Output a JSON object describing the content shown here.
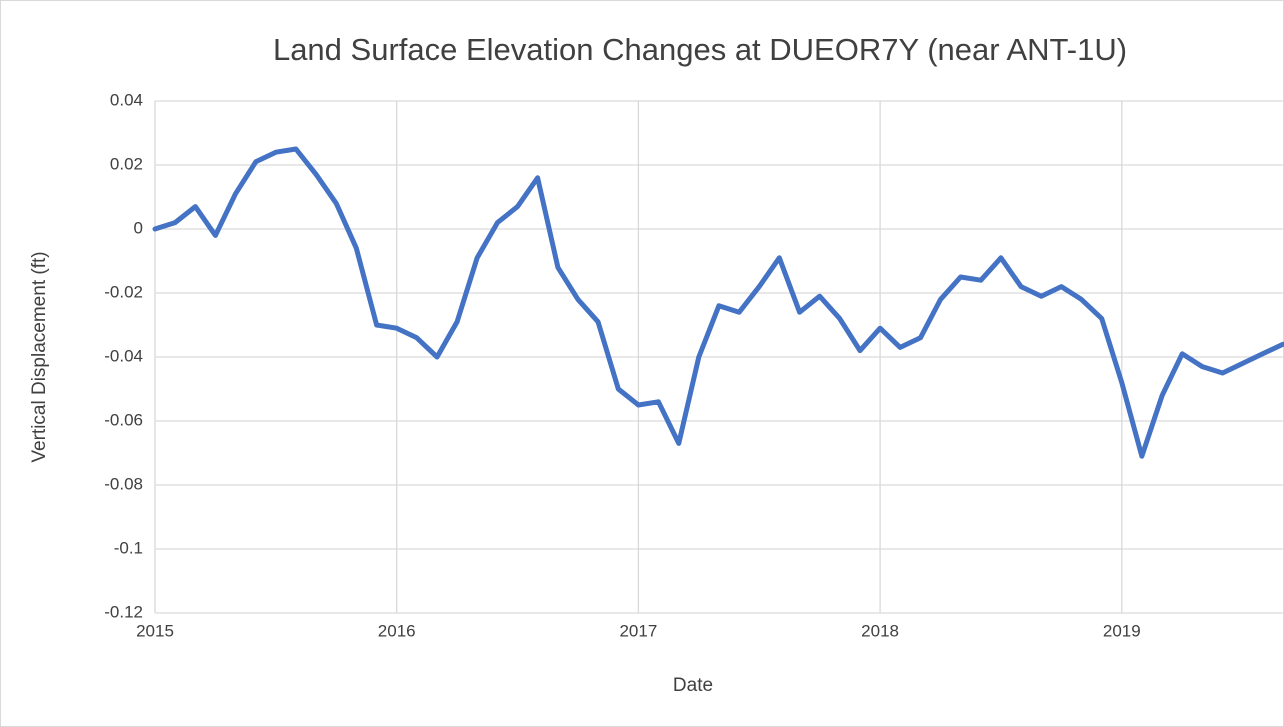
{
  "chart_data": {
    "type": "line",
    "title": "Land Surface Elevation Changes at DUEOR7Y (near ANT-1U)",
    "x_label": "Date",
    "y_label": "Vertical Displacement (ft)",
    "color": "#4472c4",
    "grid": true,
    "xlim": [
      2015,
      2019.667
    ],
    "xticks": [
      2015,
      2016,
      2017,
      2018,
      2019
    ],
    "ylim": [
      -0.12,
      0.04
    ],
    "yticks": [
      -0.12,
      -0.1,
      -0.08,
      -0.06,
      -0.04,
      -0.02,
      0,
      0.02,
      0.04
    ],
    "x": [
      2015,
      2015.083,
      2015.167,
      2015.25,
      2015.333,
      2015.417,
      2015.5,
      2015.583,
      2015.667,
      2015.75,
      2015.833,
      2015.917,
      2016,
      2016.083,
      2016.167,
      2016.25,
      2016.333,
      2016.417,
      2016.5,
      2016.583,
      2016.667,
      2016.75,
      2016.833,
      2016.917,
      2017,
      2017.083,
      2017.167,
      2017.25,
      2017.333,
      2017.417,
      2017.5,
      2017.583,
      2017.667,
      2017.75,
      2017.833,
      2017.917,
      2018,
      2018.083,
      2018.167,
      2018.25,
      2018.333,
      2018.417,
      2018.5,
      2018.583,
      2018.667,
      2018.75,
      2018.833,
      2018.917,
      2019,
      2019.083,
      2019.167,
      2019.25,
      2019.333,
      2019.417,
      2019.5,
      2019.583,
      2019.667
    ],
    "values": [
      0,
      0.002,
      0.007,
      -0.002,
      0.011,
      0.021,
      0.024,
      0.025,
      0.017,
      0.008,
      -0.006,
      -0.03,
      -0.031,
      -0.034,
      -0.04,
      -0.029,
      -0.009,
      0.002,
      0.007,
      0.016,
      -0.012,
      -0.022,
      -0.029,
      -0.05,
      -0.055,
      -0.054,
      -0.067,
      -0.04,
      -0.024,
      -0.026,
      -0.018,
      -0.009,
      -0.026,
      -0.021,
      -0.028,
      -0.038,
      -0.031,
      -0.037,
      -0.034,
      -0.022,
      -0.015,
      -0.016,
      -0.009,
      -0.018,
      -0.021,
      -0.018,
      -0.022,
      -0.028,
      -0.048,
      -0.071,
      -0.052,
      -0.039,
      -0.043,
      -0.045,
      -0.042,
      -0.039,
      -0.036
    ]
  }
}
